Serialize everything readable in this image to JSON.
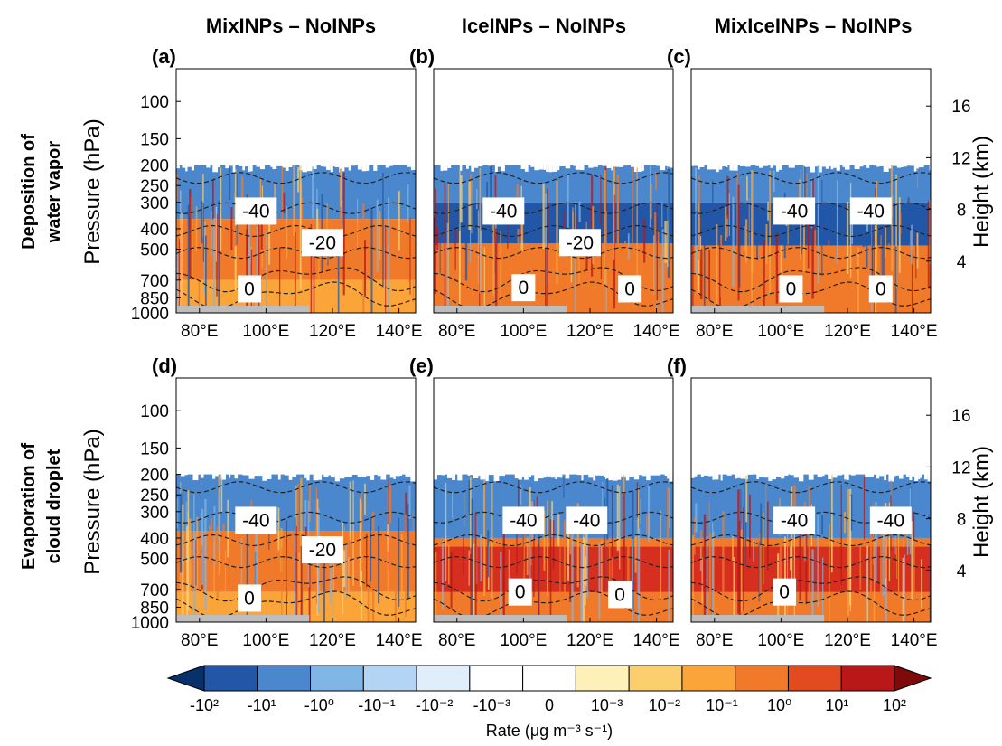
{
  "chart_data": {
    "type": "heatmap",
    "column_titles": [
      "MixINPs – NoINPs",
      "IceINPs – NoINPs",
      "MixIceINPs – NoINPs"
    ],
    "row_titles": [
      [
        "Deposition of",
        "water vapor"
      ],
      [
        "Evaporation of",
        "cloud droplet"
      ]
    ],
    "ylabel": "Pressure (hPa)",
    "ylabel_right": "Height (km)",
    "yticks_pressure": [
      "100",
      "150",
      "200",
      "250",
      "300",
      "400",
      "500",
      "700",
      "850",
      "1000"
    ],
    "yticks_height": [
      "16",
      "12",
      "8",
      "4"
    ],
    "xticks": [
      {
        "value": 80,
        "label": "80°E"
      },
      {
        "value": 100,
        "label": "100°E"
      },
      {
        "value": 120,
        "label": "120°E"
      },
      {
        "value": 140,
        "label": "140°E"
      }
    ],
    "xlim": [
      73,
      145
    ],
    "ylim_hpa": [
      1000,
      70
    ],
    "isotherms_degC": [
      -40,
      -20,
      0
    ],
    "panels": [
      {
        "id": "(a)",
        "row": 0,
        "col": 0,
        "labels": [
          {
            "text": "-40",
            "lon": 97,
            "p": 330
          },
          {
            "text": "-20",
            "lon": 117,
            "p": 465
          },
          {
            "text": "0",
            "lon": 95,
            "p": 770
          }
        ],
        "bands": [
          {
            "p_top": 200,
            "p_bot": 360,
            "level": -2
          },
          {
            "p_top": 360,
            "p_bot": 700,
            "level": 3
          },
          {
            "p_top": 700,
            "p_bot": 1000,
            "level": 2
          }
        ]
      },
      {
        "id": "(b)",
        "row": 0,
        "col": 1,
        "labels": [
          {
            "text": "-40",
            "lon": 94,
            "p": 330
          },
          {
            "text": "-20",
            "lon": 117,
            "p": 465
          },
          {
            "text": "0",
            "lon": 100,
            "p": 760
          },
          {
            "text": "0",
            "lon": 132,
            "p": 770
          }
        ],
        "bands": [
          {
            "p_top": 200,
            "p_bot": 300,
            "level": -2
          },
          {
            "p_top": 300,
            "p_bot": 470,
            "level": -3
          },
          {
            "p_top": 470,
            "p_bot": 1000,
            "level": 3
          }
        ]
      },
      {
        "id": "(c)",
        "row": 0,
        "col": 2,
        "labels": [
          {
            "text": "-40",
            "lon": 104,
            "p": 330
          },
          {
            "text": "-40",
            "lon": 127,
            "p": 330
          },
          {
            "text": "0",
            "lon": 103,
            "p": 770
          },
          {
            "text": "0",
            "lon": 130,
            "p": 770
          }
        ],
        "bands": [
          {
            "p_top": 200,
            "p_bot": 300,
            "level": -2
          },
          {
            "p_top": 300,
            "p_bot": 480,
            "level": -3
          },
          {
            "p_top": 480,
            "p_bot": 1000,
            "level": 3
          }
        ]
      },
      {
        "id": "(d)",
        "row": 1,
        "col": 0,
        "labels": [
          {
            "text": "-40",
            "lon": 97,
            "p": 330
          },
          {
            "text": "-20",
            "lon": 117,
            "p": 455
          },
          {
            "text": "0",
            "lon": 95,
            "p": 770
          }
        ],
        "bands": [
          {
            "p_top": 200,
            "p_bot": 370,
            "level": -2
          },
          {
            "p_top": 370,
            "p_bot": 720,
            "level": 3
          },
          {
            "p_top": 720,
            "p_bot": 1000,
            "level": 2
          }
        ]
      },
      {
        "id": "(e)",
        "row": 1,
        "col": 1,
        "labels": [
          {
            "text": "-40",
            "lon": 100,
            "p": 330
          },
          {
            "text": "-40",
            "lon": 119,
            "p": 330
          },
          {
            "text": "0",
            "lon": 99,
            "p": 720
          },
          {
            "text": "0",
            "lon": 129,
            "p": 740
          }
        ],
        "bands": [
          {
            "p_top": 200,
            "p_bot": 400,
            "level": -2
          },
          {
            "p_top": 400,
            "p_bot": 1000,
            "level": 3
          },
          {
            "p_top": 440,
            "p_bot": 720,
            "level": 4
          }
        ]
      },
      {
        "id": "(f)",
        "row": 1,
        "col": 2,
        "labels": [
          {
            "text": "-40",
            "lon": 104,
            "p": 330
          },
          {
            "text": "-40",
            "lon": 133,
            "p": 330
          },
          {
            "text": "0",
            "lon": 101,
            "p": 720
          }
        ],
        "bands": [
          {
            "p_top": 200,
            "p_bot": 400,
            "level": -2
          },
          {
            "p_top": 400,
            "p_bot": 1000,
            "level": 3
          },
          {
            "p_top": 440,
            "p_bot": 720,
            "level": 4
          }
        ]
      }
    ],
    "colorbar": {
      "title": "Rate (μg m⁻³ s⁻¹)",
      "labels": [
        "-10²",
        "-10¹",
        "-10⁰",
        "-10⁻¹",
        "-10⁻²",
        "-10⁻³",
        "0",
        "10⁻³",
        "10⁻²",
        "10⁻¹",
        "10⁰",
        "10¹",
        "10²"
      ],
      "colors": [
        "#08306b",
        "#2257a8",
        "#4a87cc",
        "#7fb6e6",
        "#b3d4f2",
        "#e0eefb",
        "#ffffff",
        "#ffffff",
        "#fdf0b8",
        "#fccf6e",
        "#faa43a",
        "#f07a2a",
        "#e24a20",
        "#b81818",
        "#7f0a0a"
      ]
    },
    "level_colors": {
      "-3": "#2257a8",
      "-2": "#4a87cc",
      "-1": "#7fb6e6",
      "1": "#fccf6e",
      "2": "#faa43a",
      "3": "#f07a2a",
      "4": "#d62f1f"
    },
    "line_color": "#222222",
    "terrain_color": "#bdbdbd"
  }
}
